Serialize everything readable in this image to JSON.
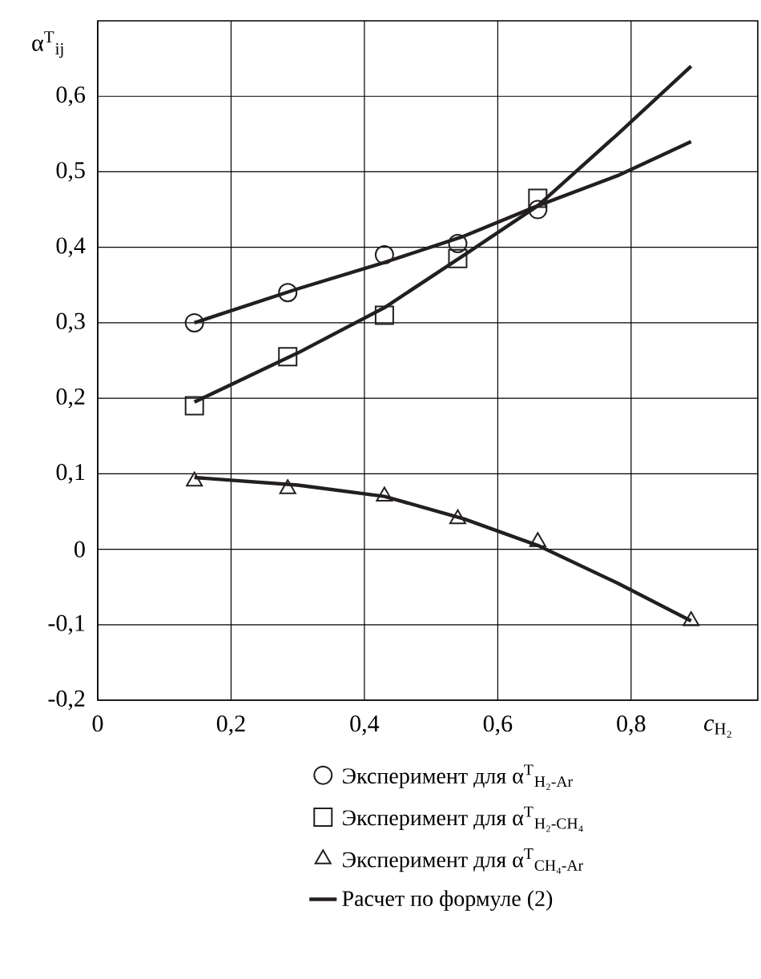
{
  "chart_data": {
    "type": "scatter",
    "xlabel": "*c*$_{H₂}$",
    "ylabel": "α$^{T}$$_{ij}$",
    "xlim": [
      0,
      0.99
    ],
    "ylim": [
      -0.2,
      0.7
    ],
    "xticks": [
      0,
      {
        "value": 0.2,
        "label": "0,2"
      },
      {
        "value": 0.4,
        "label": "0,4"
      },
      {
        "value": 0.6,
        "label": "0,6"
      },
      {
        "value": 0.8,
        "label": "0,8"
      }
    ],
    "yticks": [
      {
        "value": -0.2,
        "label": "-0,2"
      },
      {
        "value": -0.1,
        "label": "-0,1"
      },
      0,
      {
        "value": 0.1,
        "label": "0,1"
      },
      {
        "value": 0.2,
        "label": "0,2"
      },
      {
        "value": 0.3,
        "label": "0,3"
      },
      {
        "value": 0.4,
        "label": "0,4"
      },
      {
        "value": 0.5,
        "label": "0,5"
      },
      {
        "value": 0.6,
        "label": "0,6"
      }
    ],
    "grid": true,
    "legend": "bottom",
    "series": [
      {
        "name": "Эксперимент для α$^{T}$$_{H₂-Ar}$",
        "type": "scatter",
        "marker": "circle",
        "color": "#231f20",
        "x": [
          0.145,
          0.285,
          0.43,
          0.54,
          0.66
        ],
        "values": [
          0.3,
          0.34,
          0.39,
          0.405,
          0.45
        ]
      },
      {
        "name": "Эксперимент для α$^{T}$$_{H₂-CH₄}$",
        "type": "scatter",
        "marker": "square",
        "color": "#231f20",
        "x": [
          0.145,
          0.285,
          0.43,
          0.54,
          0.66
        ],
        "values": [
          0.19,
          0.255,
          0.31,
          0.385,
          0.465
        ]
      },
      {
        "name": "Эксперимент для α$^{T}$$_{CH₄-Ar}$",
        "type": "scatter",
        "marker": "triangle",
        "color": "#231f20",
        "x": [
          0.145,
          0.285,
          0.43,
          0.54,
          0.66,
          0.89
        ],
        "values": [
          0.09,
          0.08,
          0.07,
          0.04,
          0.01,
          -0.095
        ]
      },
      {
        "name": "Расчет по формуле (2)",
        "type": "line",
        "marker": "none",
        "color": "#231f20",
        "x": [
          0.145,
          0.3,
          0.43,
          0.55,
          0.66,
          0.78,
          0.89
        ],
        "values": [
          0.3,
          0.345,
          0.38,
          0.415,
          0.455,
          0.495,
          0.54
        ]
      },
      {
        "type": "line",
        "marker": "none",
        "color": "#231f20",
        "x": [
          0.145,
          0.3,
          0.43,
          0.55,
          0.66,
          0.78,
          0.89
        ],
        "values": [
          0.195,
          0.26,
          0.32,
          0.39,
          0.455,
          0.55,
          0.64
        ]
      },
      {
        "type": "line",
        "marker": "none",
        "color": "#231f20",
        "x": [
          0.145,
          0.3,
          0.43,
          0.55,
          0.66,
          0.78,
          0.89
        ],
        "values": [
          0.095,
          0.085,
          0.07,
          0.04,
          0.005,
          -0.045,
          -0.095
        ]
      }
    ]
  }
}
